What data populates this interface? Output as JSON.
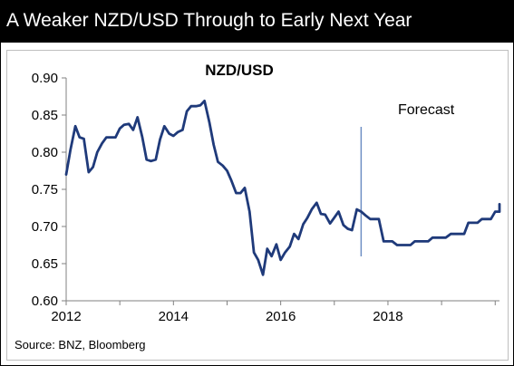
{
  "header": {
    "title": "A Weaker NZD/USD Through to Early Next Year"
  },
  "footer": {
    "source": "Source: BNZ, Bloomberg"
  },
  "colors": {
    "title_bg": "#000000",
    "title_text": "#ffffff",
    "series": "#1f3a7a",
    "forecast_marker": "#6f8fc4",
    "axis": "#808080"
  },
  "chart_data": {
    "type": "line",
    "title": "NZD/USD",
    "annotation": {
      "text": "Forecast",
      "x": 2017.5
    },
    "xlabel": "",
    "ylabel": "",
    "xlim": [
      2012,
      2020.1
    ],
    "ylim": [
      0.6,
      0.9
    ],
    "x_ticks": [
      2012,
      2014,
      2016,
      2018
    ],
    "x_tick_labels": [
      "2012",
      "2014",
      "2016",
      "2018"
    ],
    "y_ticks": [
      0.6,
      0.65,
      0.7,
      0.75,
      0.8,
      0.85,
      0.9
    ],
    "y_tick_labels": [
      "0.60",
      "0.65",
      "0.70",
      "0.75",
      "0.80",
      "0.85",
      "0.90"
    ],
    "grid": false,
    "legend": "none",
    "series": [
      {
        "values": [
          [
            2012.0,
            0.77
          ],
          [
            2012.08,
            0.803
          ],
          [
            2012.17,
            0.835
          ],
          [
            2012.25,
            0.82
          ],
          [
            2012.33,
            0.818
          ],
          [
            2012.42,
            0.773
          ],
          [
            2012.5,
            0.78
          ],
          [
            2012.58,
            0.8
          ],
          [
            2012.67,
            0.812
          ],
          [
            2012.75,
            0.82
          ],
          [
            2012.83,
            0.82
          ],
          [
            2012.92,
            0.82
          ],
          [
            2013.0,
            0.832
          ],
          [
            2013.08,
            0.837
          ],
          [
            2013.17,
            0.838
          ],
          [
            2013.25,
            0.83
          ],
          [
            2013.33,
            0.847
          ],
          [
            2013.42,
            0.82
          ],
          [
            2013.5,
            0.79
          ],
          [
            2013.58,
            0.788
          ],
          [
            2013.67,
            0.79
          ],
          [
            2013.75,
            0.817
          ],
          [
            2013.83,
            0.835
          ],
          [
            2013.92,
            0.825
          ],
          [
            2014.0,
            0.822
          ],
          [
            2014.08,
            0.827
          ],
          [
            2014.17,
            0.83
          ],
          [
            2014.25,
            0.855
          ],
          [
            2014.33,
            0.862
          ],
          [
            2014.42,
            0.862
          ],
          [
            2014.5,
            0.863
          ],
          [
            2014.58,
            0.869
          ],
          [
            2014.67,
            0.84
          ],
          [
            2014.75,
            0.81
          ],
          [
            2014.83,
            0.787
          ],
          [
            2014.92,
            0.782
          ],
          [
            2015.0,
            0.775
          ],
          [
            2015.08,
            0.762
          ],
          [
            2015.17,
            0.745
          ],
          [
            2015.25,
            0.745
          ],
          [
            2015.33,
            0.752
          ],
          [
            2015.42,
            0.72
          ],
          [
            2015.5,
            0.665
          ],
          [
            2015.58,
            0.655
          ],
          [
            2015.67,
            0.635
          ],
          [
            2015.75,
            0.67
          ],
          [
            2015.83,
            0.66
          ],
          [
            2015.92,
            0.676
          ],
          [
            2016.0,
            0.655
          ],
          [
            2016.08,
            0.665
          ],
          [
            2016.17,
            0.673
          ],
          [
            2016.25,
            0.69
          ],
          [
            2016.33,
            0.683
          ],
          [
            2016.42,
            0.703
          ],
          [
            2016.5,
            0.712
          ],
          [
            2016.58,
            0.723
          ],
          [
            2016.67,
            0.732
          ],
          [
            2016.75,
            0.717
          ],
          [
            2016.83,
            0.716
          ],
          [
            2016.92,
            0.704
          ],
          [
            2017.0,
            0.712
          ],
          [
            2017.08,
            0.72
          ],
          [
            2017.17,
            0.702
          ],
          [
            2017.25,
            0.697
          ],
          [
            2017.33,
            0.695
          ],
          [
            2017.42,
            0.723
          ],
          [
            2017.5,
            0.72
          ],
          [
            2017.58,
            0.715
          ],
          [
            2017.67,
            0.71
          ],
          [
            2017.83,
            0.71
          ],
          [
            2017.92,
            0.68
          ],
          [
            2018.08,
            0.68
          ],
          [
            2018.17,
            0.675
          ],
          [
            2018.42,
            0.675
          ],
          [
            2018.5,
            0.68
          ],
          [
            2018.75,
            0.68
          ],
          [
            2018.83,
            0.685
          ],
          [
            2019.08,
            0.685
          ],
          [
            2019.17,
            0.69
          ],
          [
            2019.42,
            0.69
          ],
          [
            2019.5,
            0.705
          ],
          [
            2019.67,
            0.705
          ],
          [
            2019.75,
            0.71
          ],
          [
            2019.92,
            0.71
          ],
          [
            2020.0,
            0.72
          ],
          [
            2020.08,
            0.72
          ],
          [
            2020.1,
            0.73
          ]
        ]
      }
    ]
  }
}
